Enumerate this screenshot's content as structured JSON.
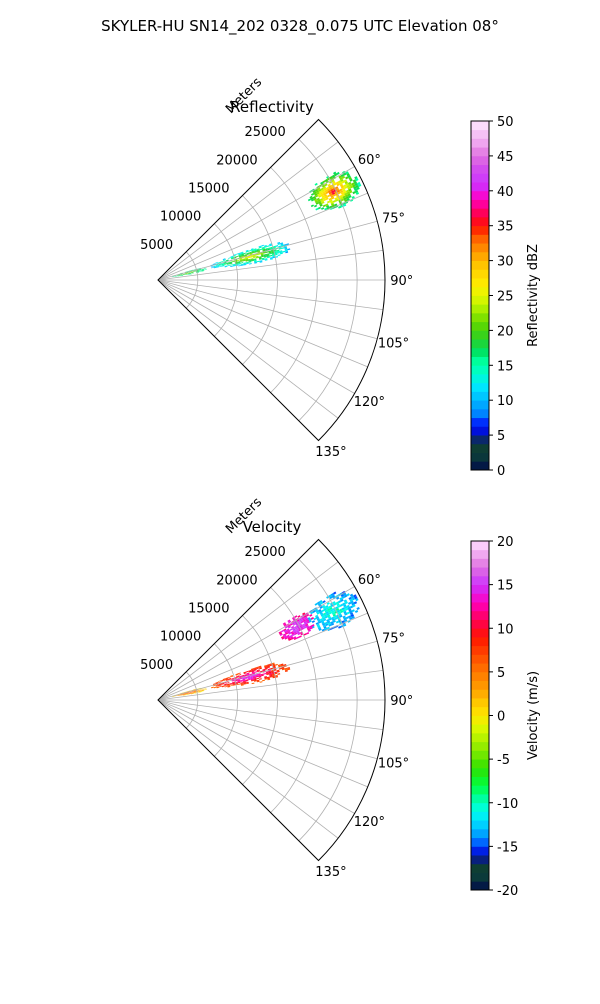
{
  "figure": {
    "suptitle": "SKYLER-HU  SN14_202  0328_0.075 UTC Elevation 08°"
  },
  "chart_data": [
    {
      "type": "heatmap",
      "projection": "polar-sector",
      "title": "Reflectivity",
      "radial_label": "Meters",
      "r_range": [
        0,
        28500
      ],
      "theta_range_deg": [
        45,
        135
      ],
      "radial_ticks": [
        5000,
        10000,
        15000,
        20000,
        25000
      ],
      "angle_ticks": [
        60,
        75,
        90,
        105,
        120,
        135
      ],
      "angle_tick_labels": [
        "60°",
        "75°",
        "90°",
        "105°",
        "120°",
        "135°"
      ],
      "grid": true,
      "colorbar": {
        "label": "Reflectivity dBZ",
        "range": [
          0,
          50
        ],
        "ticks": [
          0,
          5,
          10,
          15,
          20,
          25,
          30,
          35,
          40,
          45,
          50
        ]
      },
      "echoes": [
        {
          "r_range": [
            21000,
            28000
          ],
          "theta_range_deg": [
            58,
            68
          ],
          "value_range": [
            15,
            35
          ],
          "peak": 36
        },
        {
          "r_range": [
            6500,
            17000
          ],
          "theta_range_deg": [
            71,
            80
          ],
          "value_range": [
            10,
            27
          ]
        },
        {
          "r_range": [
            1500,
            6000
          ],
          "theta_range_deg": [
            73,
            80
          ],
          "value_range": [
            15,
            22
          ]
        }
      ]
    },
    {
      "type": "heatmap",
      "projection": "polar-sector",
      "title": "Velocity",
      "radial_label": "Meters",
      "r_range": [
        0,
        28500
      ],
      "theta_range_deg": [
        45,
        135
      ],
      "radial_ticks": [
        5000,
        10000,
        15000,
        20000,
        25000
      ],
      "angle_ticks": [
        60,
        75,
        90,
        105,
        120,
        135
      ],
      "angle_tick_labels": [
        "60°",
        "75°",
        "90°",
        "105°",
        "120°",
        "135°"
      ],
      "grid": true,
      "colorbar": {
        "label": "Velocity (m/s)",
        "range": [
          -20,
          20
        ],
        "ticks": [
          -20,
          -15,
          -10,
          -5,
          0,
          5,
          10,
          15,
          20
        ]
      },
      "echoes": [
        {
          "r_range": [
            21000,
            28000
          ],
          "theta_range_deg": [
            58,
            68
          ],
          "value_range": [
            -14,
            -10
          ]
        },
        {
          "r_range": [
            17000,
            22000
          ],
          "theta_range_deg": [
            58,
            66
          ],
          "value_range": [
            12,
            16
          ]
        },
        {
          "r_range": [
            6500,
            17000
          ],
          "theta_range_deg": [
            71,
            80
          ],
          "value_range": [
            6,
            15
          ]
        },
        {
          "r_range": [
            1500,
            6000
          ],
          "theta_range_deg": [
            73,
            80
          ],
          "value_range": [
            0,
            8
          ]
        }
      ]
    }
  ]
}
